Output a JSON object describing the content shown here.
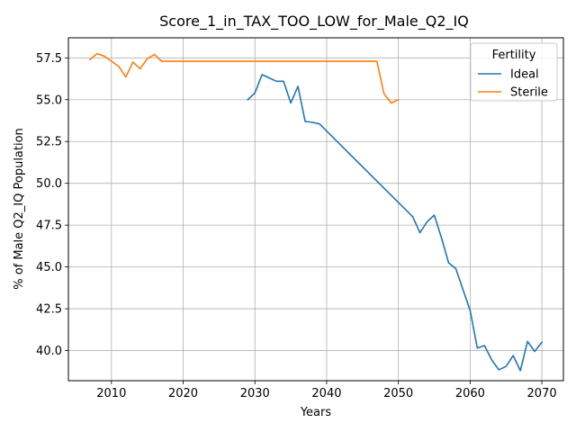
{
  "chart_data": {
    "type": "line",
    "title": "Score_1_in_TAX_TOO_LOW_for_Male_Q2_IQ",
    "xlabel": "Years",
    "ylabel": "% of Male Q2_IQ Population",
    "xlim": [
      2004,
      2073
    ],
    "ylim": [
      38.2,
      58.7
    ],
    "xticks": [
      2010,
      2020,
      2030,
      2040,
      2050,
      2060,
      2070
    ],
    "yticks": [
      40.0,
      42.5,
      45.0,
      47.5,
      50.0,
      52.5,
      55.0,
      57.5
    ],
    "grid": true,
    "legend": {
      "title": "Fertility",
      "placement": "top-right"
    },
    "series": [
      {
        "name": "Ideal",
        "color": "#1f77b4",
        "x": [
          2029,
          2030,
          2031,
          2032,
          2033,
          2034,
          2035,
          2036,
          2037,
          2038,
          2039,
          2052,
          2053,
          2054,
          2055,
          2056,
          2057,
          2058,
          2059,
          2060,
          2061,
          2062,
          2063,
          2064,
          2065,
          2066,
          2067,
          2068,
          2069,
          2070
        ],
        "y": [
          55.0,
          55.4,
          56.5,
          56.3,
          56.1,
          56.1,
          54.8,
          55.8,
          53.7,
          53.65,
          53.55,
          48.0,
          47.05,
          47.7,
          48.1,
          46.75,
          45.25,
          44.9,
          43.65,
          42.4,
          40.15,
          40.3,
          39.45,
          38.85,
          39.05,
          39.7,
          38.8,
          40.55,
          39.95,
          40.5
        ]
      },
      {
        "name": "Sterile",
        "color": "#ff7f0e",
        "x": [
          2007,
          2008,
          2009,
          2010,
          2011,
          2012,
          2013,
          2014,
          2015,
          2016,
          2017,
          2047,
          2048,
          2049,
          2050
        ],
        "y": [
          57.4,
          57.75,
          57.6,
          57.3,
          57.0,
          56.35,
          57.25,
          56.85,
          57.45,
          57.7,
          57.3,
          57.3,
          55.35,
          54.8,
          55.0
        ]
      }
    ]
  }
}
